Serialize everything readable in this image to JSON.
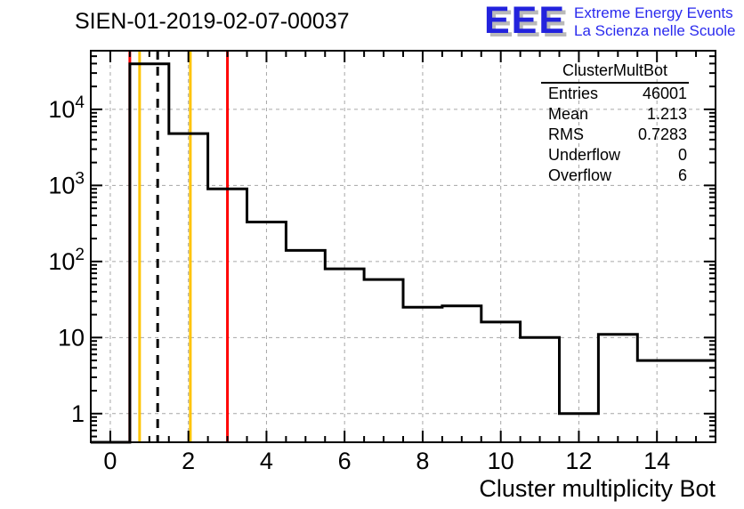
{
  "header": {
    "title": "SIEN-01-2019-02-07-00037"
  },
  "logo": {
    "acronym": "EEE",
    "line1": "Extreme Energy Events",
    "line2": "La Scienza nelle Scuole",
    "acronym_color": "#2222dd",
    "shadow_color": "#b9b9b9",
    "text_color": "#2a2aee"
  },
  "stats": {
    "title": "ClusterMultBot",
    "rows": [
      {
        "label": "Entries",
        "value": "46001"
      },
      {
        "label": "Mean",
        "value": "1.213"
      },
      {
        "label": "RMS",
        "value": "0.7283"
      },
      {
        "label": "Underflow",
        "value": "0"
      },
      {
        "label": "Overflow",
        "value": "6"
      }
    ]
  },
  "chart_data": {
    "type": "bar",
    "title": "SIEN-01-2019-02-07-00037",
    "xlabel": "Cluster multiplicity Bot",
    "ylabel": "",
    "x_range": [
      -0.5,
      15.5
    ],
    "y_scale": "log",
    "y_range": [
      0.42,
      59000
    ],
    "grid": true,
    "legend": "none",
    "x_tick_labels": [
      "0",
      "2",
      "4",
      "6",
      "8",
      "10",
      "12",
      "14"
    ],
    "x_major_ticks": [
      0,
      2,
      4,
      6,
      8,
      10,
      12,
      14
    ],
    "x_minor_step": 0.5,
    "y_decades": [
      1,
      10,
      100,
      1000,
      10000
    ],
    "y_tick_labels": [
      {
        "base": "1",
        "exp": ""
      },
      {
        "base": "10",
        "exp": ""
      },
      {
        "base": "10",
        "exp": "2"
      },
      {
        "base": "10",
        "exp": "3"
      },
      {
        "base": "10",
        "exp": "4"
      }
    ],
    "bin_width": 1,
    "bin_centers": [
      0,
      1,
      2,
      3,
      4,
      5,
      6,
      7,
      8,
      9,
      10,
      11,
      12,
      13,
      14,
      15
    ],
    "values": [
      0,
      39600,
      4800,
      900,
      330,
      140,
      80,
      58,
      25,
      26,
      16,
      10,
      1,
      11,
      5,
      5
    ],
    "marker_lines": [
      {
        "name": "threshold-red-low",
        "x": 0.5,
        "color": "#ff0000",
        "style": "solid"
      },
      {
        "name": "threshold-yellow-low",
        "x": 0.75,
        "color": "#ffc400",
        "style": "solid"
      },
      {
        "name": "mean-dashed-line",
        "x": 1.213,
        "color": "#000000",
        "style": "dashed"
      },
      {
        "name": "threshold-yellow-high",
        "x": 2.05,
        "color": "#ffc400",
        "style": "solid"
      },
      {
        "name": "threshold-red-high",
        "x": 3.0,
        "color": "#ff0000",
        "style": "solid"
      }
    ],
    "colors": {
      "histogram_line": "#000000",
      "frame": "#000000",
      "grid": "#a6a6a6"
    }
  }
}
